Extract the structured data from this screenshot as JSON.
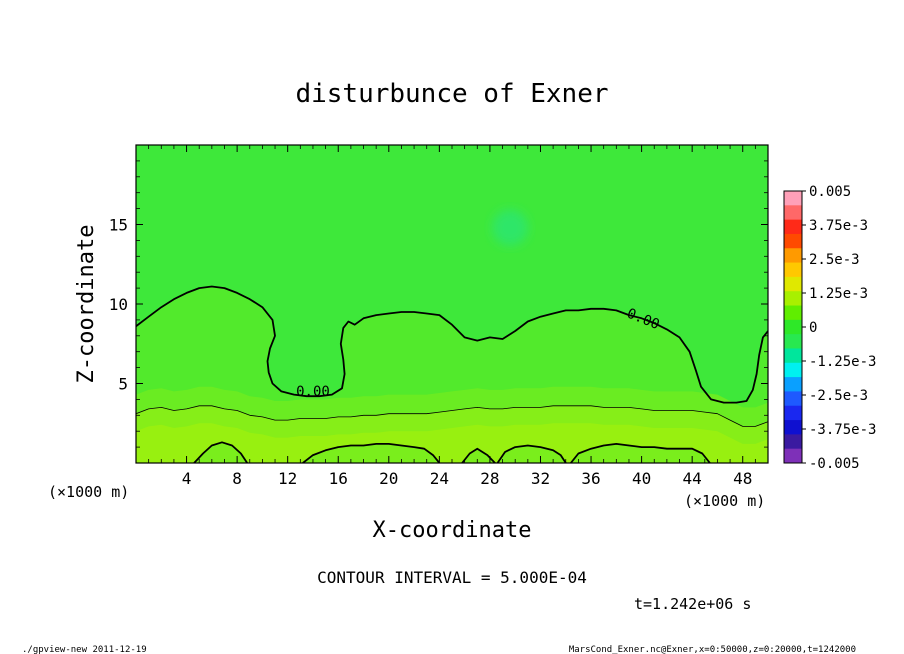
{
  "chart_data": {
    "type": "heatmap",
    "title": "disturbunce of Exner",
    "xlabel": "X-coordinate",
    "ylabel": "Z-coordinate",
    "x_unit_label": "(×1000 m)",
    "y_unit_label": "(×1000 m)",
    "xlim": [
      0,
      50
    ],
    "ylim": [
      0,
      20
    ],
    "x_ticks": [
      4,
      8,
      12,
      16,
      20,
      24,
      28,
      32,
      36,
      40,
      44,
      48
    ],
    "y_ticks": [
      5,
      10,
      15
    ],
    "contour_interval_text": "CONTOUR INTERVAL = 5.000E-04",
    "time_text": "t=1.242e+06 s",
    "colorbar": {
      "labels": [
        "0.005",
        "3.75e-3",
        "2.5e-3",
        "1.25e-3",
        "0",
        "-1.25e-3",
        "-2.5e-3",
        "-3.75e-3",
        "-0.005"
      ],
      "colors": [
        "#ffa0b8",
        "#ff6868",
        "#ff2a18",
        "#ff4a00",
        "#ff9a00",
        "#ffc800",
        "#e0e800",
        "#a8f000",
        "#60ee00",
        "#2ee828",
        "#28e850",
        "#00e69c",
        "#00f0f0",
        "#0aa0ff",
        "#1e5aff",
        "#1a28f0",
        "#0f10d0",
        "#3a1aa0",
        "#7e30b8"
      ]
    },
    "contour_labels": [
      {
        "x": 14.0,
        "z": 4.2,
        "text": "0.00"
      },
      {
        "x": 40.0,
        "z": 8.8,
        "text": "0.00"
      }
    ],
    "contours": {
      "zero_upper": [
        [
          0,
          8.6
        ],
        [
          1,
          9.2
        ],
        [
          2,
          9.8
        ],
        [
          3,
          10.3
        ],
        [
          4,
          10.7
        ],
        [
          5,
          11.0
        ],
        [
          6,
          11.1
        ],
        [
          7,
          11.0
        ],
        [
          8,
          10.7
        ],
        [
          9,
          10.3
        ],
        [
          10,
          9.8
        ],
        [
          10.8,
          9.0
        ],
        [
          11,
          8.0
        ],
        [
          10.6,
          7.2
        ],
        [
          10.4,
          6.4
        ],
        [
          10.5,
          5.7
        ],
        [
          10.8,
          5.0
        ],
        [
          11.5,
          4.5
        ],
        [
          12.5,
          4.3
        ],
        [
          13.5,
          4.2
        ],
        [
          14.5,
          4.2
        ],
        [
          15.5,
          4.3
        ],
        [
          16.3,
          4.7
        ],
        [
          16.5,
          5.6
        ],
        [
          16.4,
          6.5
        ],
        [
          16.2,
          7.5
        ],
        [
          16.4,
          8.5
        ],
        [
          16.8,
          8.9
        ],
        [
          17.3,
          8.7
        ],
        [
          18,
          9.1
        ],
        [
          19,
          9.3
        ],
        [
          20,
          9.4
        ],
        [
          21,
          9.5
        ],
        [
          22,
          9.5
        ],
        [
          23,
          9.4
        ],
        [
          24,
          9.3
        ],
        [
          25,
          8.7
        ],
        [
          26,
          7.9
        ],
        [
          27,
          7.7
        ],
        [
          28,
          7.9
        ],
        [
          29,
          7.8
        ],
        [
          30,
          8.3
        ],
        [
          31,
          8.9
        ],
        [
          32,
          9.2
        ],
        [
          33,
          9.4
        ],
        [
          34,
          9.6
        ],
        [
          35,
          9.6
        ],
        [
          36,
          9.7
        ],
        [
          37,
          9.7
        ],
        [
          38,
          9.6
        ],
        [
          39,
          9.3
        ],
        [
          40,
          9.1
        ],
        [
          41,
          8.8
        ],
        [
          42,
          8.4
        ],
        [
          43,
          7.9
        ],
        [
          43.8,
          7.0
        ],
        [
          44.3,
          5.8
        ],
        [
          44.7,
          4.8
        ],
        [
          45.5,
          4.0
        ],
        [
          46.5,
          3.8
        ],
        [
          47.5,
          3.8
        ],
        [
          48.3,
          3.9
        ],
        [
          48.8,
          4.6
        ],
        [
          49.1,
          5.6
        ],
        [
          49.3,
          6.8
        ],
        [
          49.6,
          7.9
        ],
        [
          50,
          8.3
        ]
      ],
      "positive_first": [
        [
          0,
          3.1
        ],
        [
          1,
          3.4
        ],
        [
          2,
          3.5
        ],
        [
          3,
          3.3
        ],
        [
          4,
          3.4
        ],
        [
          5,
          3.6
        ],
        [
          6,
          3.6
        ],
        [
          7,
          3.4
        ],
        [
          8,
          3.3
        ],
        [
          9,
          3.0
        ],
        [
          10,
          2.9
        ],
        [
          11,
          2.7
        ],
        [
          12,
          2.7
        ],
        [
          13,
          2.8
        ],
        [
          14,
          2.8
        ],
        [
          15,
          2.8
        ],
        [
          16,
          2.9
        ],
        [
          17,
          2.9
        ],
        [
          18,
          3.0
        ],
        [
          19,
          3.0
        ],
        [
          20,
          3.1
        ],
        [
          21,
          3.1
        ],
        [
          22,
          3.1
        ],
        [
          23,
          3.1
        ],
        [
          24,
          3.2
        ],
        [
          25,
          3.3
        ],
        [
          26,
          3.4
        ],
        [
          27,
          3.5
        ],
        [
          28,
          3.4
        ],
        [
          29,
          3.4
        ],
        [
          30,
          3.5
        ],
        [
          31,
          3.5
        ],
        [
          32,
          3.5
        ],
        [
          33,
          3.6
        ],
        [
          34,
          3.6
        ],
        [
          35,
          3.6
        ],
        [
          36,
          3.6
        ],
        [
          37,
          3.5
        ],
        [
          38,
          3.5
        ],
        [
          39,
          3.5
        ],
        [
          40,
          3.4
        ],
        [
          41,
          3.3
        ],
        [
          42,
          3.3
        ],
        [
          43,
          3.3
        ],
        [
          44,
          3.3
        ],
        [
          45,
          3.2
        ],
        [
          46,
          3.1
        ],
        [
          47,
          2.7
        ],
        [
          48,
          2.3
        ],
        [
          49,
          2.3
        ],
        [
          50,
          2.6
        ]
      ],
      "zero_lower_1": [
        [
          4.6,
          0
        ],
        [
          5.3,
          0.6
        ],
        [
          6.0,
          1.1
        ],
        [
          6.8,
          1.3
        ],
        [
          7.6,
          1.1
        ],
        [
          8.3,
          0.6
        ],
        [
          8.8,
          0
        ]
      ],
      "zero_lower_2": [
        [
          13.2,
          0
        ],
        [
          14,
          0.5
        ],
        [
          15,
          0.8
        ],
        [
          16,
          1.0
        ],
        [
          17,
          1.1
        ],
        [
          18,
          1.1
        ],
        [
          19,
          1.2
        ],
        [
          20,
          1.2
        ],
        [
          21,
          1.1
        ],
        [
          22,
          1.0
        ],
        [
          22.8,
          0.9
        ],
        [
          23.5,
          0.5
        ],
        [
          24,
          0
        ]
      ],
      "zero_lower_3": [
        [
          25.8,
          0
        ],
        [
          26.4,
          0.6
        ],
        [
          27.0,
          0.9
        ],
        [
          27.8,
          0.5
        ],
        [
          28.4,
          0
        ]
      ],
      "zero_lower_4": [
        [
          28.6,
          0
        ],
        [
          29.2,
          0.7
        ],
        [
          30,
          1.0
        ],
        [
          31,
          1.1
        ],
        [
          32,
          1.0
        ],
        [
          33,
          0.8
        ],
        [
          33.6,
          0.5
        ],
        [
          34,
          0
        ]
      ],
      "zero_lower_5": [
        [
          34.4,
          0
        ],
        [
          35,
          0.6
        ],
        [
          36,
          0.9
        ],
        [
          37,
          1.1
        ],
        [
          38,
          1.2
        ],
        [
          39,
          1.1
        ],
        [
          40,
          1.0
        ],
        [
          41,
          1.0
        ],
        [
          42,
          0.9
        ],
        [
          43,
          0.9
        ],
        [
          44,
          0.9
        ],
        [
          44.8,
          0.6
        ],
        [
          45.4,
          0
        ]
      ]
    }
  },
  "footer": {
    "left": "./gpview-new   2011-12-19",
    "right": "MarsCond_Exner.nc@Exner,x=0:50000,z=0:20000,t=1242000"
  }
}
